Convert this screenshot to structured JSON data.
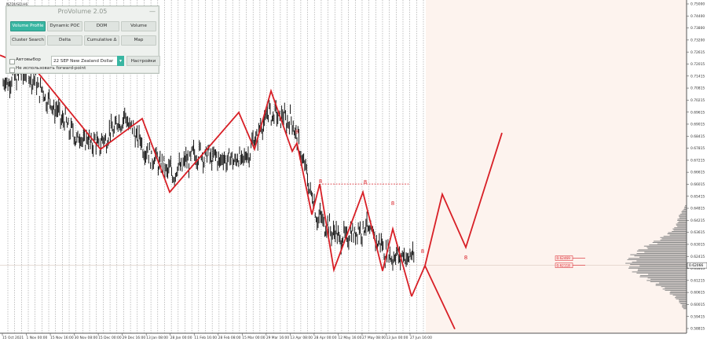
{
  "symbol_label": "NZDUSD,H6",
  "price_axis": {
    "labels": [
      "0.75000",
      "0.74400",
      "0.73800",
      "0.73200",
      "0.72615",
      "0.72015",
      "0.71415",
      "0.70815",
      "0.70215",
      "0.69615",
      "0.69015",
      "0.68415",
      "0.67815",
      "0.67215",
      "0.66615",
      "0.66015",
      "0.65415",
      "0.64815",
      "0.64215",
      "0.63615",
      "0.63015",
      "0.62415",
      "0.61815",
      "0.61215",
      "0.60615",
      "0.60015",
      "0.59415",
      "0.58815"
    ],
    "current_price": "0.62066"
  },
  "time_axis": {
    "labels": [
      "15 Oct 2021",
      "1 Nov 00:00",
      "15 Nov 16:00",
      "30 Nov 08:00",
      "15 Dec 00:00",
      "29 Dec 16:00",
      "13 Jan 08:00",
      "28 Jan 00:00",
      "11 Feb 16:00",
      "28 Feb 08:00",
      "15 Mar 00:00",
      "29 Mar 16:00",
      "13 Apr 08:00",
      "28 Apr 00:00",
      "12 May 16:00",
      "27 May 08:00",
      "13 Jun 00:00",
      "27 Jun 16:00"
    ]
  },
  "volume_profile": {
    "level_labels": [
      "0.62469",
      "0.62118"
    ]
  },
  "annotations": {
    "wave_marks": [
      "8",
      "8",
      "8",
      "8",
      "8",
      "8"
    ]
  },
  "colors": {
    "wave_line": "#d81f26",
    "candles": "#000000",
    "future_bg": "#fdf3ee",
    "profile": "#8a8a8a",
    "panel_accent": "#39b6a2"
  },
  "panel": {
    "title": "ProVolume 2.05",
    "close": "—",
    "buttons": [
      {
        "label": "Volume Profile",
        "active": true
      },
      {
        "label": "Dynamic POC",
        "active": false
      },
      {
        "label": "DOM",
        "active": false
      },
      {
        "label": "Volume",
        "active": false
      },
      {
        "label": "Cluster Search",
        "active": false
      },
      {
        "label": "Delta",
        "active": false
      },
      {
        "label": "Cumulative Δ",
        "active": false
      },
      {
        "label": "Map",
        "active": false
      }
    ],
    "auto_select_label": "Автовыбор",
    "instrument_value": "22 SEP New Zealand Dollar",
    "settings_label": "Настройки",
    "forward_point_label": "Не использовать forward-point"
  },
  "chart_data": {
    "type": "line",
    "title": "",
    "instrument": "NZDUSD,H6",
    "xlabel": "",
    "ylabel": "",
    "ylim": [
      0.588,
      0.751
    ],
    "grid": "vertical dotted",
    "x": [
      "15 Oct 2021",
      "1 Nov 00:00",
      "15 Nov 16:00",
      "30 Nov 08:00",
      "15 Dec 00:00",
      "29 Dec 16:00",
      "13 Jan 08:00",
      "28 Jan 00:00",
      "11 Feb 16:00",
      "28 Feb 08:00",
      "15 Mar 00:00",
      "29 Mar 16:00",
      "13 Apr 08:00",
      "28 Apr 00:00",
      "12 May 16:00",
      "27 May 08:00",
      "13 Jun 00:00",
      "27 Jun 16:00"
    ],
    "series": [
      {
        "values": [
          0.71,
          0.716,
          0.7,
          0.684,
          0.68,
          0.694,
          0.676,
          0.666,
          0.676,
          0.673,
          0.673,
          0.696,
          0.691,
          0.645,
          0.634,
          0.64,
          0.626,
          0.625
        ]
      }
    ],
    "wave_pivots": [
      {
        "x": "1 Nov 00:00",
        "y": 0.717
      },
      {
        "x": "30 Nov 08:00",
        "y": 0.678
      },
      {
        "x": "29 Dec 16:00",
        "y": 0.693
      },
      {
        "x": "28 Jan 00:00",
        "y": 0.657
      },
      {
        "x": "28 Feb 08:00",
        "y": 0.696
      },
      {
        "x": "15 Mar 00:00",
        "y": 0.678
      },
      {
        "x": "29 Mar 16:00",
        "y": 0.7065
      },
      {
        "x": "13 Apr 08:00",
        "y": 0.677
      },
      {
        "x": "13 Apr 08:00",
        "y": 0.681
      },
      {
        "x": "28 Apr 00:00",
        "y": 0.646
      },
      {
        "x": "28 Apr 00:00",
        "y": 0.661
      },
      {
        "x": "12 May 16:00",
        "y": 0.619
      },
      {
        "x": "27 May 08:00",
        "y": 0.657
      },
      {
        "x": "13 Jun 00:00",
        "y": 0.6185
      },
      {
        "x": "13 Jun 00:00",
        "y": 0.639
      },
      {
        "x": "27 Jun 16:00",
        "y": 0.606
      }
    ],
    "forecast_paths": [
      [
        {
          "x": "27 Jun 16:00",
          "y": 0.621
        },
        {
          "x": "",
          "y": 0.656
        },
        {
          "x": "",
          "y": 0.63
        },
        {
          "x": "",
          "y": 0.686
        }
      ],
      [
        {
          "x": "27 Jun 16:00",
          "y": 0.621
        },
        {
          "x": "",
          "y": 0.59
        }
      ]
    ],
    "level_lines": [
      0.661,
      0.6212
    ],
    "volume_profile_levels": [
      "0.62469",
      "0.62118"
    ]
  }
}
